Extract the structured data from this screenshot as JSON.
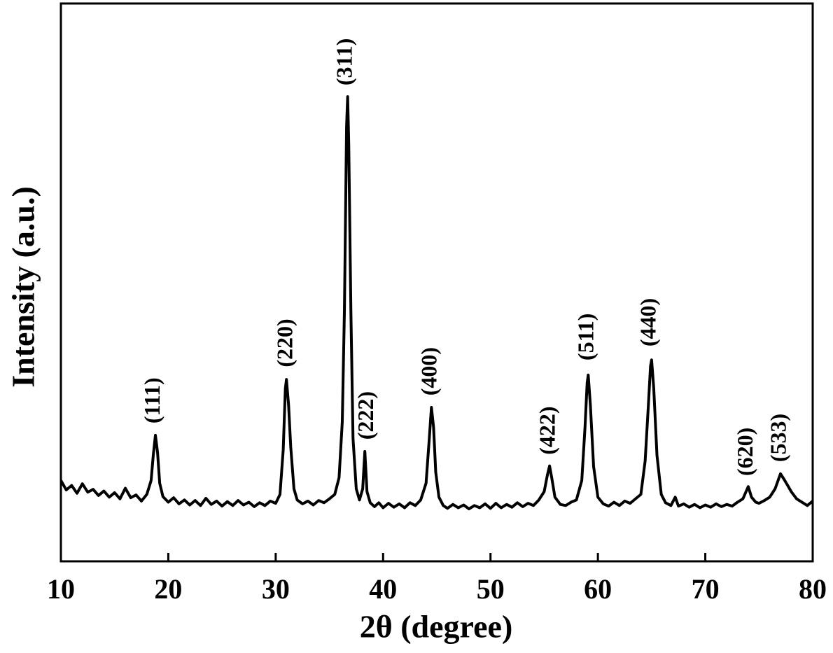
{
  "chart_data": {
    "type": "line",
    "xlabel": "2θ (degree)",
    "ylabel": "Intensity (a.u.)",
    "xlim": [
      10,
      80
    ],
    "ylim": [
      0,
      100
    ],
    "xticks": [
      10,
      20,
      30,
      40,
      50,
      60,
      70,
      80
    ],
    "series": [
      {
        "color": "#000000",
        "x": [
          10,
          10.5,
          11,
          11.5,
          12,
          12.5,
          13,
          13.5,
          14,
          14.5,
          15,
          15.5,
          16,
          16.5,
          17,
          17.5,
          18,
          18.4,
          18.6,
          18.8,
          19.0,
          19.2,
          19.5,
          20,
          20.5,
          21,
          21.5,
          22,
          22.5,
          23,
          23.5,
          24,
          24.5,
          25,
          25.5,
          26,
          26.5,
          27,
          27.5,
          28,
          28.5,
          29,
          29.5,
          30,
          30.4,
          30.7,
          30.9,
          31.0,
          31.2,
          31.4,
          31.7,
          32,
          32.5,
          33,
          33.5,
          34,
          34.5,
          35,
          35.5,
          35.9,
          36.2,
          36.4,
          36.6,
          36.7,
          36.8,
          37.0,
          37.2,
          37.5,
          37.8,
          38.1,
          38.3,
          38.5,
          38.8,
          39.2,
          39.6,
          40,
          40.5,
          41,
          41.5,
          42,
          42.5,
          43,
          43.5,
          44,
          44.3,
          44.5,
          44.7,
          44.9,
          45.2,
          45.6,
          46,
          46.5,
          47,
          47.5,
          48,
          48.5,
          49,
          49.5,
          50,
          50.5,
          51,
          51.5,
          52,
          52.5,
          53,
          53.5,
          54,
          54.5,
          55,
          55.3,
          55.5,
          55.7,
          56,
          56.5,
          57,
          57.5,
          58,
          58.5,
          58.8,
          59.0,
          59.1,
          59.3,
          59.6,
          60,
          60.5,
          61,
          61.5,
          62,
          62.5,
          63,
          63.5,
          64,
          64.4,
          64.7,
          64.9,
          65.0,
          65.2,
          65.5,
          65.9,
          66.3,
          66.8,
          67.2,
          67.5,
          68,
          68.5,
          69,
          69.5,
          70,
          70.5,
          71,
          71.5,
          72,
          72.5,
          73,
          73.5,
          74,
          74.3,
          74.7,
          75,
          75.5,
          76,
          76.5,
          77,
          77.3,
          77.7,
          78,
          78.5,
          79,
          79.5,
          80
        ],
        "values": [
          14.5,
          12.8,
          13.6,
          12.2,
          13.9,
          12.4,
          12.9,
          11.8,
          12.6,
          11.5,
          12.3,
          11.2,
          13.1,
          11.4,
          11.9,
          10.8,
          12.0,
          14.5,
          19.0,
          22.6,
          19.5,
          14.0,
          11.6,
          10.6,
          11.4,
          10.3,
          11.0,
          10.1,
          10.9,
          10.0,
          11.3,
          10.2,
          10.8,
          9.9,
          10.7,
          10.0,
          10.9,
          10.1,
          10.6,
          9.8,
          10.5,
          10.0,
          10.8,
          10.4,
          12.0,
          20.0,
          31.0,
          32.6,
          28.0,
          20.5,
          13.0,
          11.0,
          10.3,
          10.8,
          10.1,
          10.9,
          10.5,
          11.2,
          12.0,
          15.0,
          25.0,
          45.0,
          78.0,
          83.3,
          75.0,
          45.0,
          22.0,
          13.0,
          11.0,
          13.0,
          19.7,
          12.5,
          10.5,
          9.8,
          10.5,
          9.6,
          10.4,
          9.7,
          10.3,
          9.6,
          10.5,
          10.0,
          11.0,
          14.0,
          22.0,
          27.6,
          24.0,
          16.0,
          11.5,
          10.0,
          9.5,
          10.2,
          9.6,
          10.1,
          9.4,
          10.0,
          9.6,
          10.3,
          9.5,
          10.4,
          9.6,
          10.2,
          9.7,
          10.5,
          9.8,
          10.4,
          10.0,
          11.0,
          12.5,
          15.5,
          17.1,
          15.0,
          11.5,
          10.2,
          10.0,
          10.6,
          11.0,
          14.5,
          24.0,
          32.0,
          33.4,
          28.0,
          17.0,
          11.5,
          10.3,
          9.9,
          10.6,
          10.0,
          10.8,
          10.4,
          11.2,
          12.0,
          18.0,
          28.0,
          35.0,
          36.1,
          31.0,
          19.0,
          12.0,
          10.5,
          10.0,
          11.5,
          9.9,
          10.3,
          9.7,
          10.2,
          9.6,
          10.1,
          9.7,
          10.3,
          9.8,
          10.2,
          9.9,
          10.6,
          11.2,
          13.4,
          11.5,
          10.6,
          10.4,
          10.9,
          11.5,
          13.0,
          15.7,
          14.8,
          13.5,
          12.5,
          11.2,
          10.6,
          10.0,
          10.8
        ]
      }
    ],
    "annotations": [
      {
        "text": "(111)",
        "x": 18.7,
        "y": 24.7
      },
      {
        "text": "(220)",
        "x": 31.05,
        "y": 34.8
      },
      {
        "text": "(311)",
        "x": 36.6,
        "y": 85.3
      },
      {
        "text": "(222)",
        "x": 38.6,
        "y": 21.8
      },
      {
        "text": "(400)",
        "x": 44.5,
        "y": 29.7
      },
      {
        "text": "(422)",
        "x": 55.5,
        "y": 19.1
      },
      {
        "text": "(511)",
        "x": 59.1,
        "y": 36
      },
      {
        "text": "(440)",
        "x": 64.9,
        "y": 38.5
      },
      {
        "text": "(620)",
        "x": 73.9,
        "y": 15.3
      },
      {
        "text": "(533)",
        "x": 77.0,
        "y": 17.8
      }
    ]
  }
}
